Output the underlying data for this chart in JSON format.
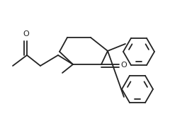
{
  "bg_color": "#ffffff",
  "line_color": "#222222",
  "line_width": 1.3,
  "fig_width": 2.4,
  "fig_height": 1.71,
  "dpi": 100,
  "xlim": [
    0,
    240
  ],
  "ylim": [
    0,
    171
  ]
}
